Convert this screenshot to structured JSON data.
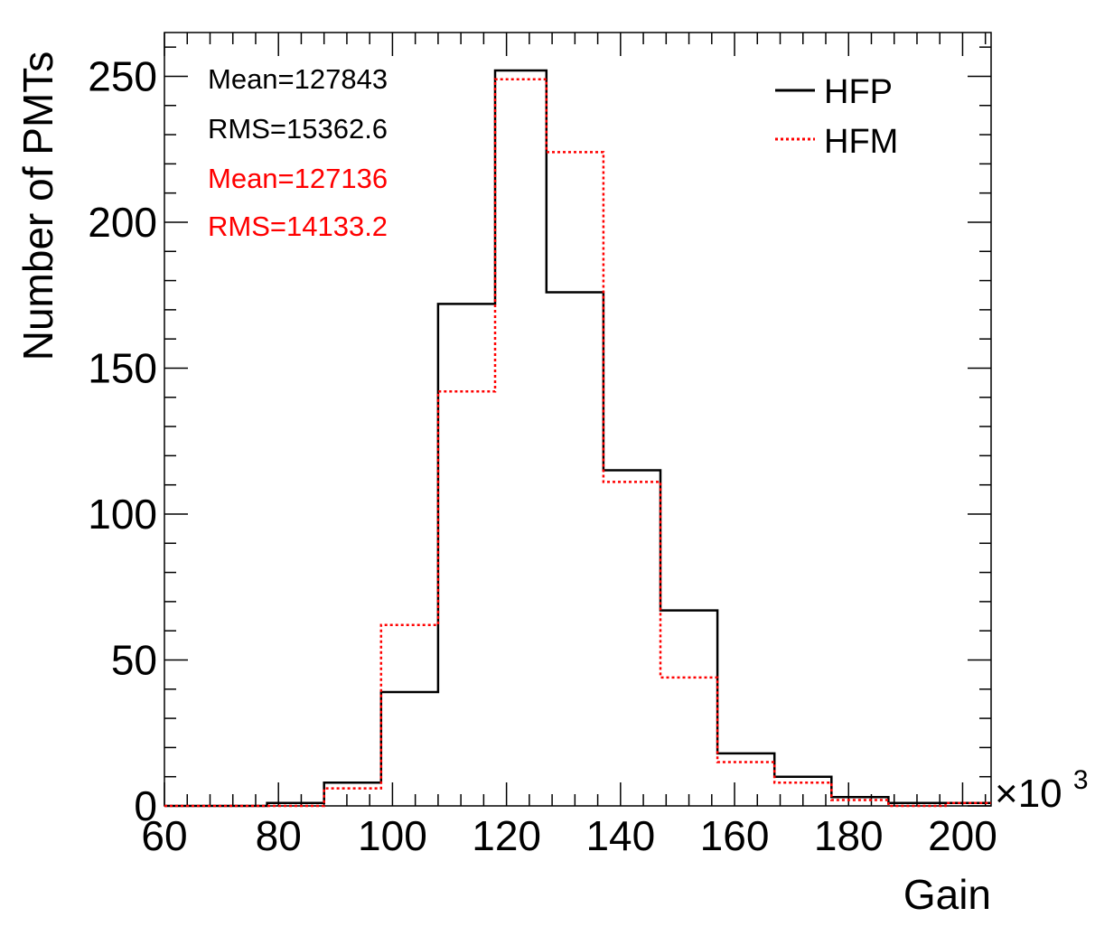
{
  "chart_data": {
    "type": "histogram",
    "xlabel": "Gain",
    "ylabel": "Number of PMTs",
    "x_exponent_label": "×10",
    "x_exponent_power": "3",
    "xlim": [
      60,
      205
    ],
    "ylim": [
      0,
      265
    ],
    "x_ticks": [
      60,
      80,
      100,
      120,
      140,
      160,
      180,
      200
    ],
    "y_ticks": [
      0,
      50,
      100,
      150,
      200,
      250
    ],
    "bin_edges": [
      58,
      68,
      78,
      88,
      98,
      108,
      118,
      127,
      137,
      147,
      157,
      167,
      177,
      187,
      197,
      205
    ],
    "series": [
      {
        "name": "HFP",
        "color": "#000000",
        "style": "solid",
        "values": [
          0,
          0,
          1,
          8,
          39,
          172,
          252,
          176,
          115,
          67,
          18,
          10,
          3,
          1,
          1
        ],
        "stats": [
          "Mean=127843",
          "RMS=15362.6"
        ]
      },
      {
        "name": "HFM",
        "color": "#ff0000",
        "style": "dotted",
        "values": [
          0,
          0,
          0,
          6,
          62,
          142,
          249,
          224,
          111,
          44,
          15,
          8,
          2,
          0,
          1
        ],
        "stats": [
          "Mean=127136",
          "RMS=14133.2"
        ]
      }
    ],
    "legend_position": "top-right",
    "grid": false
  }
}
